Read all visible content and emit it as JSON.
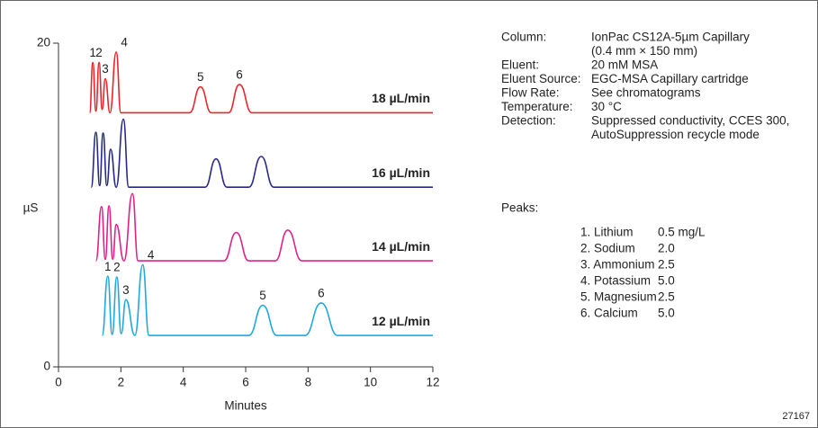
{
  "chart_data": {
    "type": "line",
    "xlabel": "Minutes",
    "ylabel": "µS",
    "xlim": [
      0,
      12
    ],
    "xticks": [
      0,
      2,
      4,
      6,
      8,
      10,
      12
    ],
    "ylim": [
      0,
      20
    ],
    "yticks": [
      0,
      20
    ],
    "series": [
      {
        "name": "18 µL/min",
        "color": "#e8262b",
        "x": [
          1.0,
          1.1,
          1.2,
          1.3,
          1.4,
          1.5,
          1.65,
          1.85,
          2.0,
          4.2,
          4.55,
          4.9,
          5.45,
          5.8,
          6.2,
          12
        ],
        "values": [
          15.7,
          18.8,
          15.8,
          18.8,
          15.9,
          17.8,
          15.7,
          19.45,
          15.7,
          15.7,
          17.3,
          15.7,
          15.7,
          17.45,
          15.7,
          15.7
        ],
        "peak_labels": [
          "1",
          "2",
          "3",
          "4",
          "5",
          "6"
        ]
      },
      {
        "name": "16 µL/min",
        "color": "#27288a",
        "x": [
          1.05,
          1.2,
          1.32,
          1.43,
          1.55,
          1.67,
          1.85,
          2.08,
          2.25,
          4.7,
          5.05,
          5.4,
          6.1,
          6.5,
          6.9,
          12
        ],
        "values": [
          11.1,
          14.5,
          11.2,
          14.45,
          11.2,
          13.45,
          11.1,
          15.3,
          11.1,
          11.1,
          12.85,
          11.1,
          11.1,
          13.0,
          11.1,
          11.1
        ]
      },
      {
        "name": "14 µL/min",
        "color": "#e0218a",
        "x": [
          1.2,
          1.38,
          1.5,
          1.62,
          1.74,
          1.85,
          2.1,
          2.37,
          2.55,
          5.3,
          5.7,
          6.1,
          6.95,
          7.35,
          7.8,
          12
        ],
        "values": [
          6.55,
          9.9,
          6.65,
          9.95,
          6.65,
          8.8,
          6.55,
          10.7,
          6.55,
          6.55,
          8.3,
          6.55,
          6.55,
          8.45,
          6.55,
          6.55
        ]
      },
      {
        "name": "12 µL/min",
        "color": "#1fa9e1",
        "x": [
          1.4,
          1.58,
          1.72,
          1.87,
          2.01,
          2.16,
          2.45,
          2.7,
          2.9,
          6.1,
          6.55,
          7.0,
          7.9,
          8.42,
          8.95,
          12
        ],
        "values": [
          1.94,
          5.6,
          2.0,
          5.55,
          2.05,
          4.15,
          1.94,
          6.3,
          1.94,
          1.94,
          3.8,
          1.94,
          1.94,
          3.95,
          1.94,
          1.94
        ],
        "peak_labels": [
          "1",
          "2",
          "3",
          "4",
          "5",
          "6"
        ]
      }
    ]
  },
  "info": {
    "rows": [
      {
        "label": "Column:",
        "lines": [
          "IonPac CS12A-5µm Capillary",
          "(0.4 mm × 150 mm)"
        ]
      },
      {
        "label": "Eluent:",
        "lines": [
          "20 mM MSA"
        ]
      },
      {
        "label": "Eluent Source:",
        "lines": [
          "EGC-MSA Capillary cartridge"
        ]
      },
      {
        "label": "Flow Rate:",
        "lines": [
          "See chromatograms"
        ]
      },
      {
        "label": "Temperature:",
        "lines": [
          "30 °C"
        ]
      },
      {
        "label": "Detection:",
        "lines": [
          "Suppressed conductivity, CCES 300,",
          "AutoSuppression recycle mode"
        ]
      }
    ]
  },
  "peaks": {
    "title": "Peaks:",
    "rows": [
      [
        "1. Lithium",
        "0.5  mg/L"
      ],
      [
        "2. Sodium",
        "2.0"
      ],
      [
        "3. Ammonium",
        "2.5"
      ],
      [
        "4. Potassium",
        "5.0"
      ],
      [
        "5. Magnesium",
        "2.5"
      ],
      [
        "6. Calcium",
        "5.0"
      ]
    ]
  },
  "figure_number": "27167"
}
